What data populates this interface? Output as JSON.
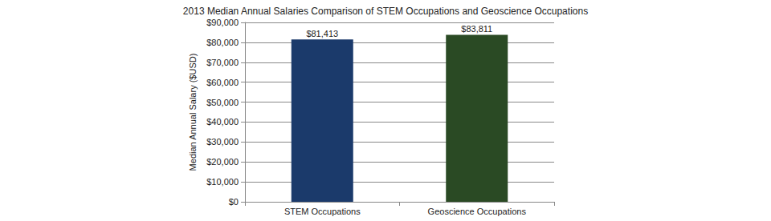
{
  "chart_data": {
    "type": "bar",
    "title": "2013 Median Annual Salaries Comparison of STEM Occupations and Geoscience Occupations",
    "ylabel": "Median Annual Salary ($USD)",
    "categories": [
      "STEM Occupations",
      "Geoscience Occupations"
    ],
    "values": [
      81413,
      83811
    ],
    "value_labels": [
      "$81,413",
      "$83,811"
    ],
    "colors": [
      "#1b3a6b",
      "#2a4a24"
    ],
    "ylim": [
      0,
      90000
    ],
    "yticks": [
      {
        "value": 0,
        "label": "$0"
      },
      {
        "value": 10000,
        "label": "$10,000"
      },
      {
        "value": 20000,
        "label": "$20,000"
      },
      {
        "value": 30000,
        "label": "$30,000"
      },
      {
        "value": 40000,
        "label": "$40,000"
      },
      {
        "value": 50000,
        "label": "$50,000"
      },
      {
        "value": 60000,
        "label": "$60,000"
      },
      {
        "value": 70000,
        "label": "$70,000"
      },
      {
        "value": 80000,
        "label": "$80,000"
      },
      {
        "value": 90000,
        "label": "$90,000"
      }
    ],
    "grid": true,
    "data_labels": true
  }
}
